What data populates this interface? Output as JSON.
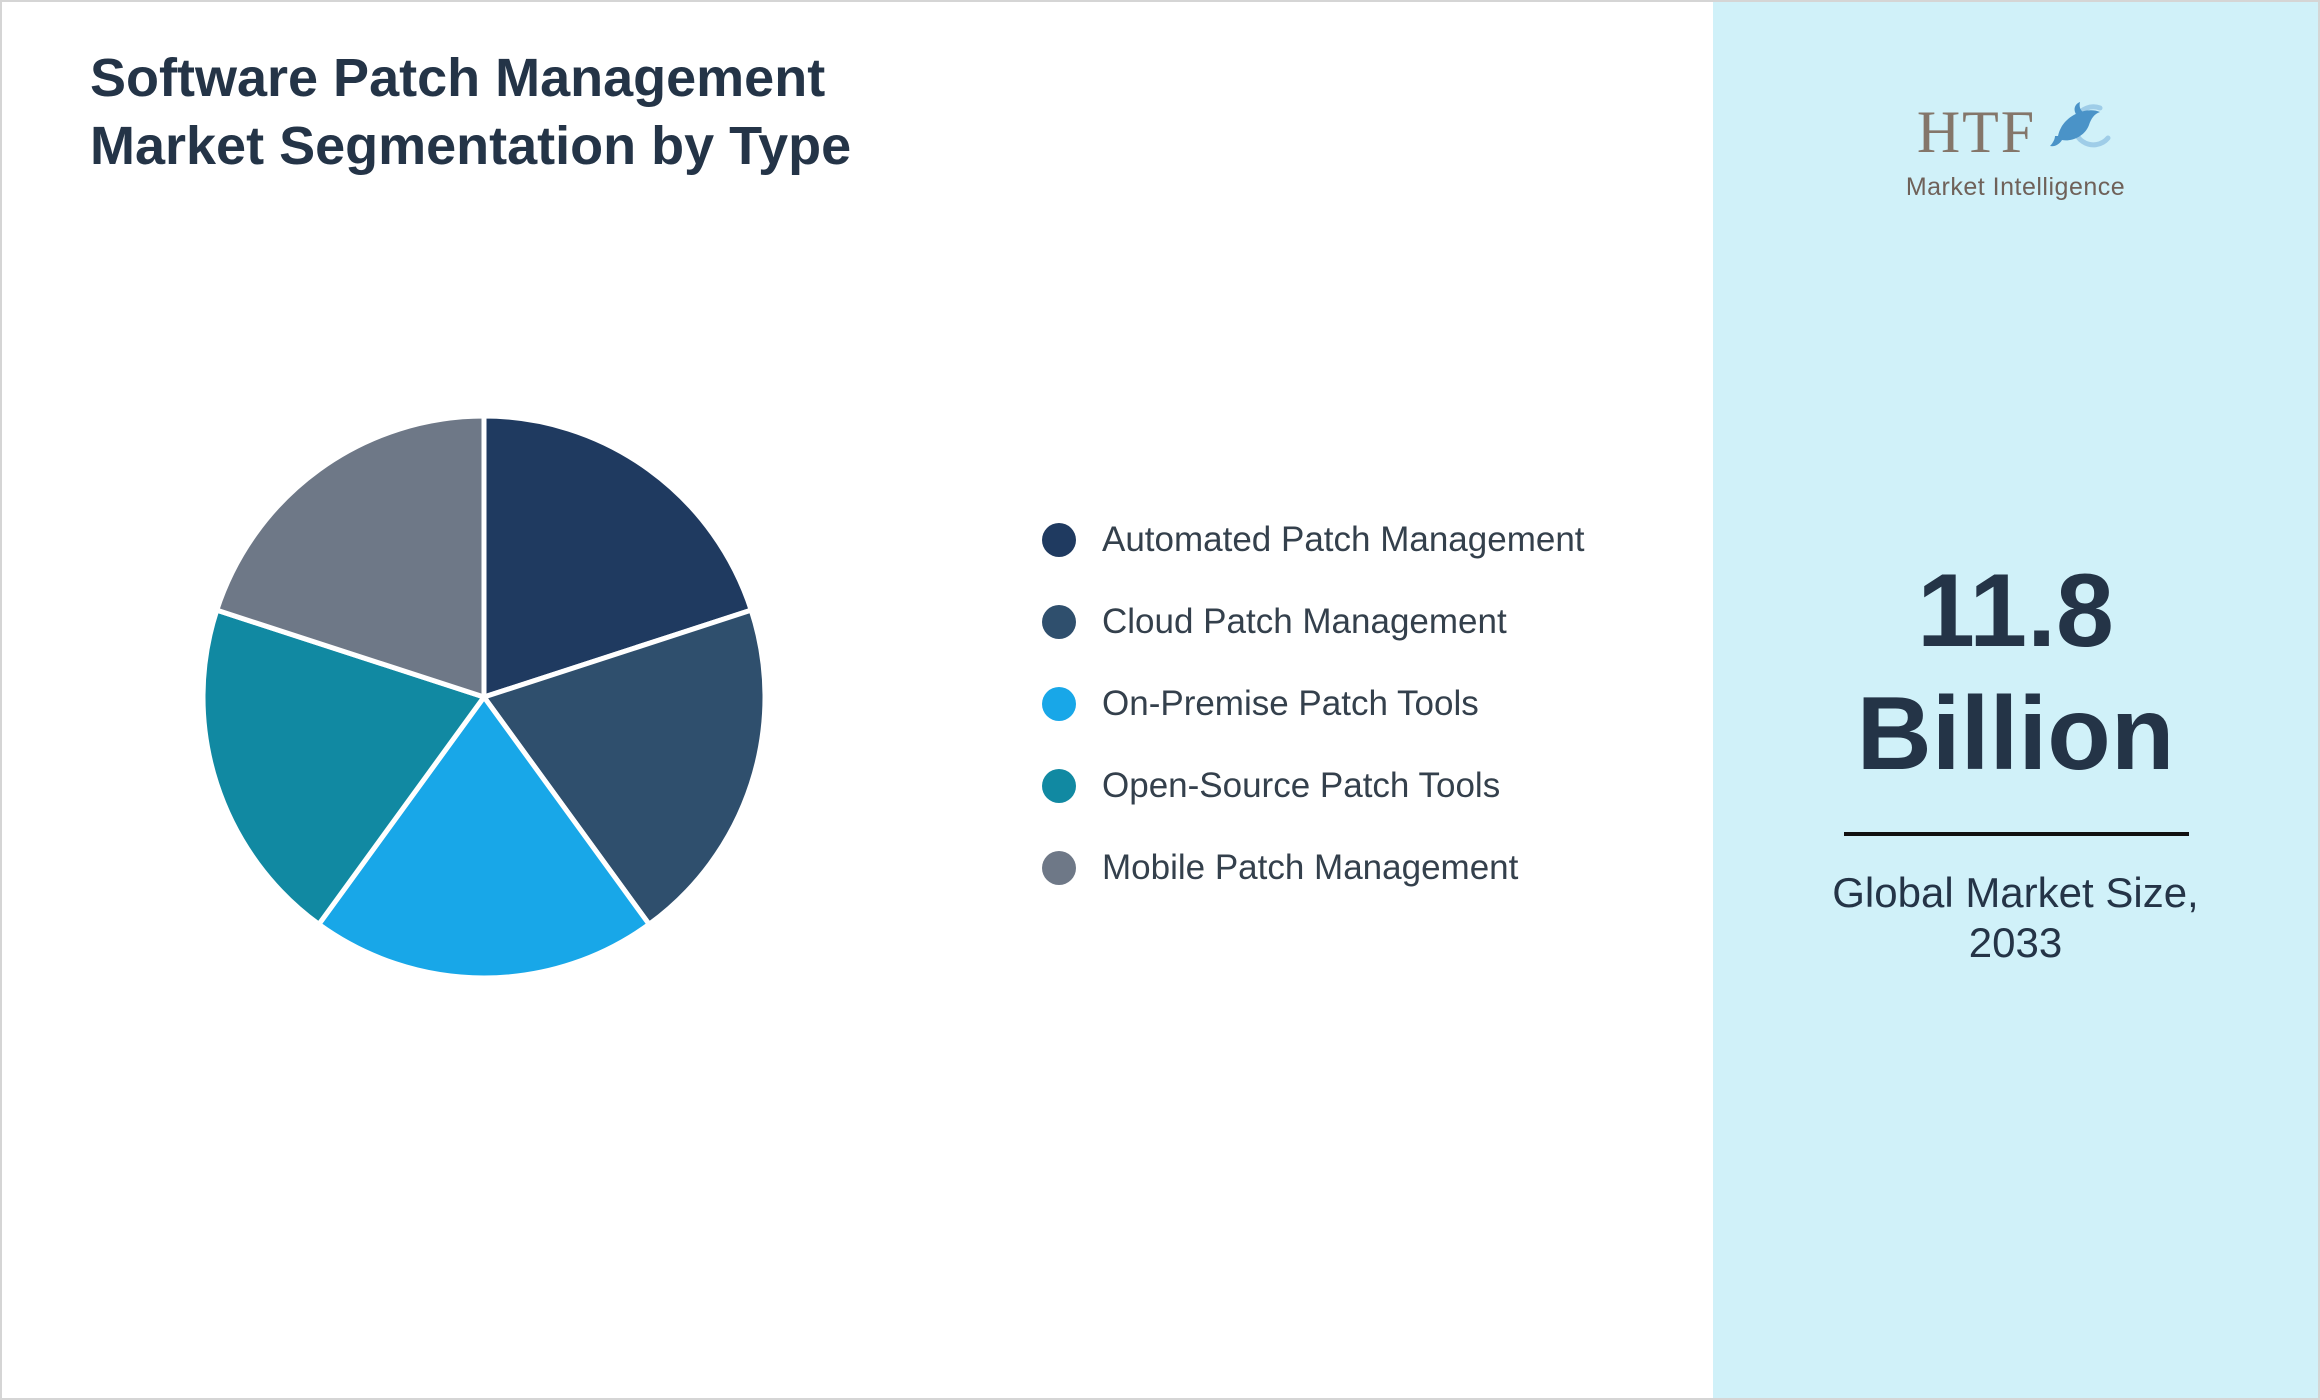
{
  "title": {
    "line1": "Software Patch Management",
    "line2": "Market Segmentation by Type"
  },
  "legend": {
    "items": [
      {
        "label": "Automated Patch Management",
        "color": "#1f3a60"
      },
      {
        "label": "Cloud Patch Management",
        "color": "#2f4f6d"
      },
      {
        "label": "On-Premise Patch Tools",
        "color": "#18a7e8"
      },
      {
        "label": "Open-Source Patch Tools",
        "color": "#1189a2"
      },
      {
        "label": "Mobile Patch Management",
        "color": "#6e7887"
      }
    ]
  },
  "chart_data": {
    "type": "pie",
    "title": "Software Patch Management Market Segmentation by Type",
    "categories": [
      "Automated Patch Management",
      "Cloud Patch Management",
      "On-Premise Patch Tools",
      "Open-Source Patch Tools",
      "Mobile Patch Management"
    ],
    "values": [
      20,
      20,
      20,
      20,
      20
    ],
    "colors": [
      "#1f3a60",
      "#2f4f6d",
      "#18a7e8",
      "#1189a2",
      "#6e7887"
    ],
    "legend_position": "right",
    "start_angle_deg": -90,
    "direction": "clockwise"
  },
  "sidebar": {
    "logo_text": "HTF",
    "logo_subtext": "Market Intelligence",
    "value_line1": "11.8",
    "value_line2": "Billion",
    "caption_line1": "Global Market Size,",
    "caption_line2": "2033",
    "background": "#d0f1f9"
  }
}
